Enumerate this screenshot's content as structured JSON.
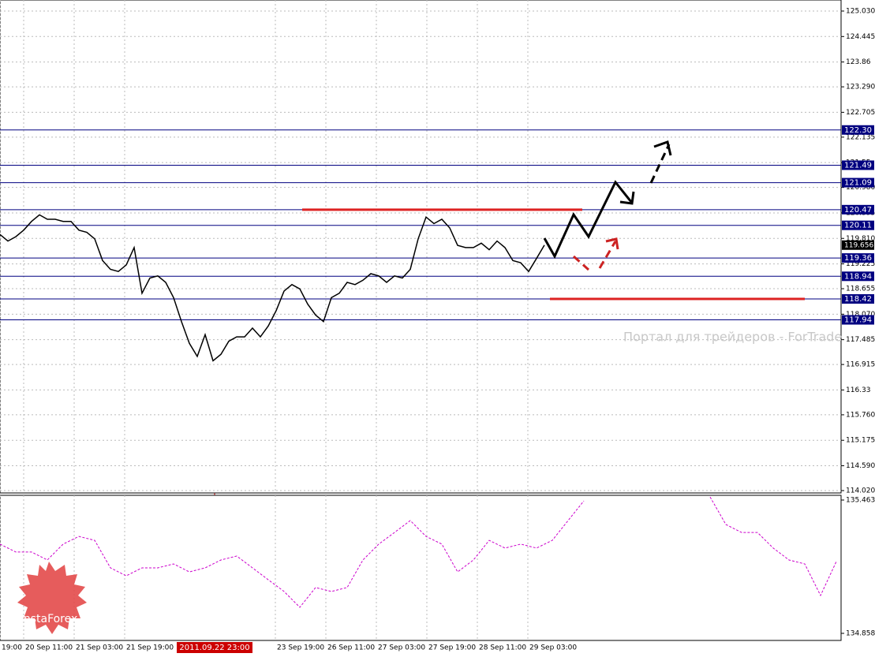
{
  "chart_data": [
    {
      "type": "line",
      "color": "#000000",
      "x": [
        0,
        1,
        2,
        3,
        4,
        5,
        6,
        7,
        8,
        9,
        10,
        11,
        12,
        13,
        14,
        15,
        16,
        17,
        18,
        19,
        20,
        21,
        22,
        23,
        24,
        25,
        26,
        27,
        28,
        29,
        30,
        31,
        32,
        33,
        34,
        35,
        36,
        37,
        38,
        39,
        40,
        41,
        42,
        43,
        44,
        45,
        46,
        47,
        48,
        49,
        50,
        51,
        52,
        53,
        54,
        55,
        56,
        57,
        58,
        59,
        60,
        61,
        62,
        63,
        64,
        65,
        66,
        67,
        68,
        69
      ],
      "values": [
        119.9,
        119.75,
        119.85,
        120.0,
        120.2,
        120.35,
        120.25,
        120.25,
        120.2,
        120.2,
        120.0,
        119.95,
        119.8,
        119.3,
        119.1,
        119.05,
        119.2,
        119.6,
        118.55,
        118.9,
        118.95,
        118.8,
        118.45,
        117.9,
        117.4,
        117.1,
        117.6,
        117.0,
        117.15,
        117.45,
        117.55,
        117.55,
        117.75,
        117.55,
        117.8,
        118.15,
        118.6,
        118.75,
        118.65,
        118.3,
        118.05,
        117.9,
        118.45,
        118.55,
        118.8,
        118.75,
        118.85,
        119.0,
        118.95,
        118.8,
        118.95,
        118.9,
        119.1,
        119.8,
        120.3,
        120.15,
        120.25,
        120.05,
        119.65,
        119.6,
        119.6,
        119.7,
        119.55,
        119.75,
        119.6,
        119.3,
        119.25,
        119.05,
        119.35,
        119.656
      ],
      "xlim": [
        0,
        106.6
      ],
      "ylim": [
        114.02,
        125.03
      ],
      "yticks": [
        {
          "value": 125.03,
          "label": "125.030"
        },
        124.445,
        123.86,
        {
          "value": 123.29,
          "label": "123.290"
        },
        122.705,
        122.135,
        121.55,
        {
          "value": 120.98,
          "label": "120.980"
        },
        120.395,
        {
          "value": 119.81,
          "label": "119.810"
        },
        119.225,
        118.655,
        {
          "value": 118.07,
          "label": "118.070"
        },
        117.485,
        116.915,
        116.33,
        {
          "value": 115.76,
          "label": "115.760"
        },
        115.175,
        {
          "value": 114.59,
          "label": "114.590"
        },
        {
          "value": 114.02,
          "label": "114.020"
        }
      ],
      "grid": true,
      "levels": [
        {
          "value": 122.3,
          "label": "122.30"
        },
        121.49,
        121.09,
        120.47,
        120.11,
        119.36,
        118.94,
        118.42,
        117.94
      ],
      "level_color": "#000080",
      "current_price": 119.656,
      "red_lines": [
        {
          "y": 120.47,
          "x": [
            38.3,
            73.8
          ]
        },
        {
          "y": 118.42,
          "x": [
            69.7,
            102
          ]
        }
      ],
      "watermark": "Портал для трейдеров - ForTrade"
    },
    {
      "type": "line",
      "color": "#cc00cc",
      "x": [
        0,
        2,
        4,
        6,
        8,
        10,
        12,
        14,
        16,
        18,
        20,
        22,
        24,
        26,
        28,
        30,
        32,
        34,
        36,
        38,
        40,
        42,
        44,
        46,
        48,
        50,
        52,
        54,
        56,
        58,
        60,
        62,
        64,
        66,
        68,
        70,
        72,
        74,
        76,
        78,
        80,
        82,
        84,
        86,
        88,
        90,
        92,
        94,
        96,
        98,
        100,
        102,
        104,
        106
      ],
      "values": [
        135.263,
        135.227,
        135.227,
        135.191,
        135.263,
        135.298,
        135.28,
        135.155,
        135.119,
        135.155,
        135.155,
        135.173,
        135.137,
        135.155,
        135.191,
        135.209,
        135.155,
        135.101,
        135.048,
        134.976,
        135.066,
        135.048,
        135.066,
        135.191,
        135.263,
        135.316,
        135.37,
        135.298,
        135.263,
        135.137,
        135.191,
        135.28,
        135.245,
        135.263,
        135.245,
        135.28,
        135.37,
        135.459,
        null,
        null,
        null,
        null,
        null,
        null,
        null,
        135.477,
        135.352,
        135.316,
        135.316,
        135.245,
        135.191,
        135.173,
        135.03,
        135.184
      ],
      "xlim": [
        0,
        106.6
      ],
      "ylim": [
        134.858,
        135.463
      ],
      "yticks": [
        134.858,
        135.463
      ],
      "xticks": [
        {
          "value": 0,
          "label": "19:00"
        },
        {
          "value": 3.0,
          "label": "20 Sep 11:00"
        },
        {
          "value": 9.4,
          "label": "21 Sep 03:00"
        },
        {
          "value": 15.8,
          "label": "21 Sep 19:00"
        },
        {
          "value": 34.9,
          "label": "23 Sep 19:00"
        },
        {
          "value": 41.3,
          "label": "26 Sep 11:00"
        },
        {
          "value": 47.7,
          "label": "27 Sep 03:00"
        },
        {
          "value": 54.1,
          "label": "27 Sep 19:00"
        },
        {
          "value": 60.5,
          "label": "28 Sep 11:00"
        },
        {
          "value": 66.9,
          "label": "29 Sep 03:00"
        }
      ],
      "crosshair": {
        "value": 27.2,
        "label": "2011.09.22 23:00"
      },
      "logo": "InstaForex"
    }
  ]
}
